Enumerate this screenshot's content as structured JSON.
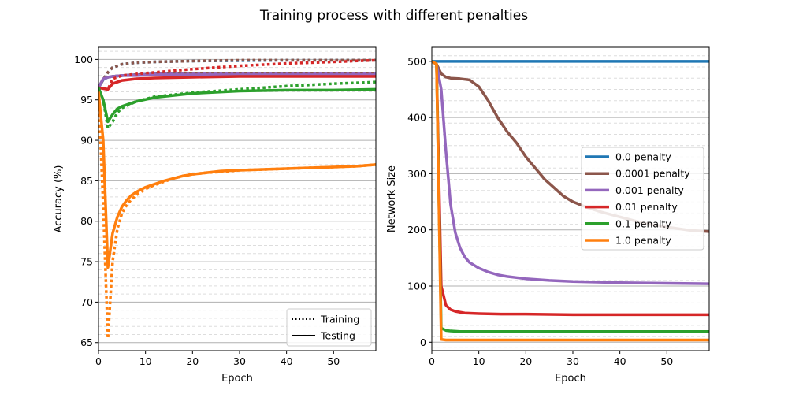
{
  "figure": {
    "title": "Training process with different penalties"
  },
  "chart_data": [
    {
      "type": "line",
      "xlabel": "Epoch",
      "ylabel": "Accuracy (%)",
      "xlim": [
        0,
        59
      ],
      "ylim": [
        64,
        101.5
      ],
      "xticks": [
        0,
        10,
        20,
        30,
        40,
        50
      ],
      "yticks": [
        65,
        70,
        75,
        80,
        85,
        90,
        95,
        100
      ],
      "grid": {
        "major": true,
        "minor": true,
        "axis": "y"
      },
      "legend": {
        "position": "bottom-right",
        "entries": [
          {
            "label": "Training",
            "style": "dotted"
          },
          {
            "label": "Testing",
            "style": "solid"
          }
        ]
      },
      "series": [
        {
          "penalty": "0.0",
          "color": "#1f77b4",
          "train": {
            "x": [
              0,
              1,
              2,
              3,
              5,
              8,
              12,
              20,
              30,
              40,
              50,
              59
            ],
            "y": [
              96.5,
              97.5,
              98.4,
              99.0,
              99.4,
              99.6,
              99.7,
              99.8,
              99.85,
              99.9,
              99.9,
              99.9
            ]
          },
          "test": {
            "x": [
              0,
              1,
              2,
              3,
              5,
              8,
              12,
              20,
              30,
              40,
              50,
              59
            ],
            "y": [
              96.5,
              97.5,
              97.8,
              97.9,
              98.0,
              98.1,
              98.2,
              98.3,
              98.3,
              98.3,
              98.3,
              98.3
            ]
          }
        },
        {
          "penalty": "0.0001",
          "color": "#8c564b",
          "train": {
            "x": [
              0,
              1,
              2,
              3,
              5,
              8,
              12,
              20,
              30,
              40,
              50,
              59
            ],
            "y": [
              96.5,
              97.5,
              98.4,
              99.0,
              99.4,
              99.6,
              99.7,
              99.8,
              99.9,
              99.9,
              99.9,
              99.9
            ]
          },
          "test": {
            "x": [
              0,
              1,
              2,
              3,
              5,
              8,
              12,
              20,
              30,
              40,
              50,
              59
            ],
            "y": [
              96.5,
              97.6,
              97.8,
              97.9,
              98.0,
              98.1,
              98.2,
              98.3,
              98.3,
              98.3,
              98.3,
              98.3
            ]
          }
        },
        {
          "penalty": "0.001",
          "color": "#9467bd",
          "train": {
            "x": [
              0,
              1,
              2,
              3,
              5,
              8,
              12,
              20,
              30,
              40,
              50,
              59
            ],
            "y": [
              96.5,
              97.6,
              97.8,
              97.9,
              98.0,
              98.1,
              98.2,
              98.2,
              98.3,
              98.3,
              98.3,
              98.3
            ]
          },
          "test": {
            "x": [
              0,
              1,
              2,
              3,
              5,
              8,
              12,
              20,
              30,
              40,
              50,
              59
            ],
            "y": [
              96.5,
              97.6,
              97.8,
              97.9,
              98.0,
              98.0,
              98.1,
              98.1,
              98.1,
              98.1,
              98.1,
              98.1
            ]
          }
        },
        {
          "penalty": "0.01",
          "color": "#d62728",
          "train": {
            "x": [
              0,
              1,
              2,
              3,
              5,
              8,
              12,
              20,
              30,
              40,
              50,
              59
            ],
            "y": [
              96.5,
              96.4,
              96.3,
              97.6,
              98.0,
              98.2,
              98.4,
              98.8,
              99.2,
              99.5,
              99.7,
              99.9
            ]
          },
          "test": {
            "x": [
              0,
              1,
              2,
              3,
              5,
              8,
              12,
              20,
              30,
              40,
              50,
              59
            ],
            "y": [
              96.5,
              96.4,
              96.3,
              97.0,
              97.4,
              97.6,
              97.7,
              97.8,
              97.9,
              97.9,
              97.9,
              97.9
            ]
          }
        },
        {
          "penalty": "0.1",
          "color": "#2ca02c",
          "train": {
            "x": [
              0,
              1,
              2,
              3,
              4,
              5,
              8,
              12,
              20,
              30,
              40,
              50,
              59
            ],
            "y": [
              96.5,
              95.0,
              91.5,
              92.3,
              93.4,
              94.0,
              94.8,
              95.4,
              95.9,
              96.3,
              96.7,
              97.0,
              97.2
            ]
          },
          "test": {
            "x": [
              0,
              1,
              2,
              3,
              4,
              5,
              8,
              12,
              20,
              30,
              40,
              50,
              59
            ],
            "y": [
              96.5,
              95.0,
              92.3,
              93.2,
              93.9,
              94.2,
              94.8,
              95.3,
              95.8,
              96.1,
              96.2,
              96.2,
              96.3
            ]
          }
        },
        {
          "penalty": "1.0",
          "color": "#ff7f0e",
          "train": {
            "x": [
              0,
              1,
              2,
              3,
              4,
              5,
              6,
              7,
              8,
              10,
              12,
              14,
              16,
              18,
              20,
              23,
              26,
              30,
              35,
              40,
              45,
              50,
              55,
              59
            ],
            "y": [
              96.0,
              82.0,
              65.5,
              75.0,
              79.0,
              81.0,
              82.0,
              82.7,
              83.2,
              84.0,
              84.5,
              84.9,
              85.3,
              85.6,
              85.8,
              86.0,
              86.1,
              86.3,
              86.4,
              86.5,
              86.6,
              86.7,
              86.8,
              87.0
            ]
          },
          "test": {
            "x": [
              0,
              1,
              2,
              3,
              4,
              5,
              6,
              7,
              8,
              10,
              12,
              14,
              16,
              18,
              20,
              23,
              26,
              30,
              35,
              40,
              45,
              50,
              55,
              59
            ],
            "y": [
              96.0,
              90.0,
              74.3,
              78.5,
              80.5,
              81.8,
              82.6,
              83.2,
              83.6,
              84.2,
              84.6,
              85.0,
              85.3,
              85.6,
              85.8,
              86.0,
              86.2,
              86.3,
              86.4,
              86.5,
              86.6,
              86.7,
              86.8,
              87.0
            ]
          }
        }
      ]
    },
    {
      "type": "line",
      "xlabel": "Epoch",
      "ylabel": "Network Size",
      "xlim": [
        0,
        59
      ],
      "ylim": [
        -15,
        525
      ],
      "xticks": [
        0,
        10,
        20,
        30,
        40,
        50
      ],
      "yticks": [
        0,
        100,
        200,
        300,
        400,
        500
      ],
      "grid": {
        "major": true,
        "minor": true,
        "axis": "y"
      },
      "legend": {
        "position": "center-right"
      },
      "series": [
        {
          "name": "0.0 penalty",
          "color": "#1f77b4",
          "x": [
            0,
            59
          ],
          "y": [
            500,
            500
          ]
        },
        {
          "name": "0.0001 penalty",
          "color": "#8c564b",
          "x": [
            0,
            1,
            2,
            3,
            4,
            6,
            8,
            10,
            12,
            14,
            16,
            18,
            20,
            22,
            24,
            26,
            28,
            30,
            33,
            36,
            40,
            45,
            50,
            55,
            59
          ],
          "y": [
            500,
            495,
            478,
            472,
            470,
            469,
            467,
            455,
            430,
            400,
            375,
            355,
            330,
            310,
            290,
            275,
            260,
            250,
            240,
            232,
            223,
            212,
            205,
            199,
            197
          ]
        },
        {
          "name": "0.001 penalty",
          "color": "#9467bd",
          "x": [
            0,
            1,
            2,
            3,
            4,
            5,
            6,
            7,
            8,
            10,
            12,
            14,
            16,
            18,
            20,
            25,
            30,
            40,
            50,
            59
          ],
          "y": [
            500,
            495,
            450,
            340,
            245,
            195,
            168,
            152,
            142,
            132,
            125,
            120,
            117,
            115,
            113,
            110,
            108,
            106,
            105,
            104
          ]
        },
        {
          "name": "0.01 penalty",
          "color": "#d62728",
          "x": [
            0,
            1,
            2,
            3,
            4,
            5,
            7,
            10,
            15,
            20,
            30,
            40,
            50,
            59
          ],
          "y": [
            500,
            495,
            100,
            66,
            58,
            55,
            52,
            51,
            50,
            50,
            49,
            49,
            49,
            49
          ]
        },
        {
          "name": "0.1 penalty",
          "color": "#2ca02c",
          "x": [
            0,
            1,
            2,
            3,
            4,
            6,
            10,
            20,
            30,
            40,
            50,
            59
          ],
          "y": [
            500,
            495,
            25,
            21,
            20,
            19,
            19,
            19,
            19,
            19,
            19,
            19
          ]
        },
        {
          "name": "1.0 penalty",
          "color": "#ff7f0e",
          "x": [
            0,
            1,
            2,
            3,
            10,
            20,
            30,
            40,
            50,
            59
          ],
          "y": [
            500,
            495,
            5,
            4,
            4,
            4,
            4,
            4,
            4,
            4
          ]
        }
      ]
    }
  ]
}
